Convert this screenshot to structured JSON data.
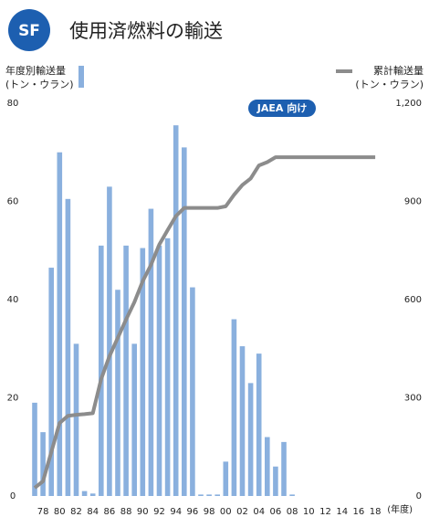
{
  "chart_data": {
    "type": "bar_line",
    "badge": "SF",
    "title": "使用済燃料の輸送",
    "y_label": "(トン・ウラン)",
    "y2_label": "(トン・ウラン)",
    "annotation": "JAEA 向け",
    "x_unit": "(年度)",
    "categories": [
      null,
      "78",
      null,
      "80",
      null,
      "82",
      null,
      "84",
      null,
      "86",
      null,
      "88",
      null,
      "90",
      null,
      "92",
      null,
      "94",
      null,
      "96",
      null,
      "98",
      null,
      "00",
      null,
      "02",
      null,
      "04",
      null,
      "06",
      null,
      "08",
      null,
      "10",
      null,
      "12",
      null,
      "14",
      null,
      "16",
      null,
      "18"
    ],
    "series": [
      {
        "name": "年度別輸送量",
        "color": "#8ab0de",
        "values": [
          19,
          13,
          46.5,
          70,
          60.5,
          31,
          1,
          0.5,
          51,
          63,
          42,
          51,
          31,
          50.5,
          58.5,
          51,
          52.5,
          75.5,
          71,
          42.5,
          0.3,
          0.3,
          0.3,
          7,
          36,
          30.5,
          23,
          29,
          12,
          6,
          11,
          0.3,
          0,
          0,
          0,
          0,
          0,
          0,
          0,
          0,
          0,
          0
        ]
      },
      {
        "name": "累計輸送量",
        "color": "#8c8c8c",
        "axis": "y2",
        "values": [
          25,
          45,
          134,
          223,
          245,
          248,
          250,
          253,
          357,
          427,
          483,
          539,
          592,
          656,
          706,
          768,
          812,
          855,
          880,
          880,
          880,
          880,
          880,
          885,
          920,
          950,
          970,
          1010,
          1020,
          1035,
          1035,
          1035,
          1035,
          1035,
          1035,
          1035,
          1035,
          1035,
          1035,
          1035,
          1035,
          1035
        ]
      }
    ],
    "ylim": [
      0,
      80
    ],
    "yticks": [
      0,
      20,
      40,
      60,
      80
    ],
    "y2lim": [
      0,
      1200
    ],
    "y2ticks": [
      0,
      300,
      600,
      900,
      {
        "value": 1200,
        "label": "1,200"
      }
    ]
  }
}
